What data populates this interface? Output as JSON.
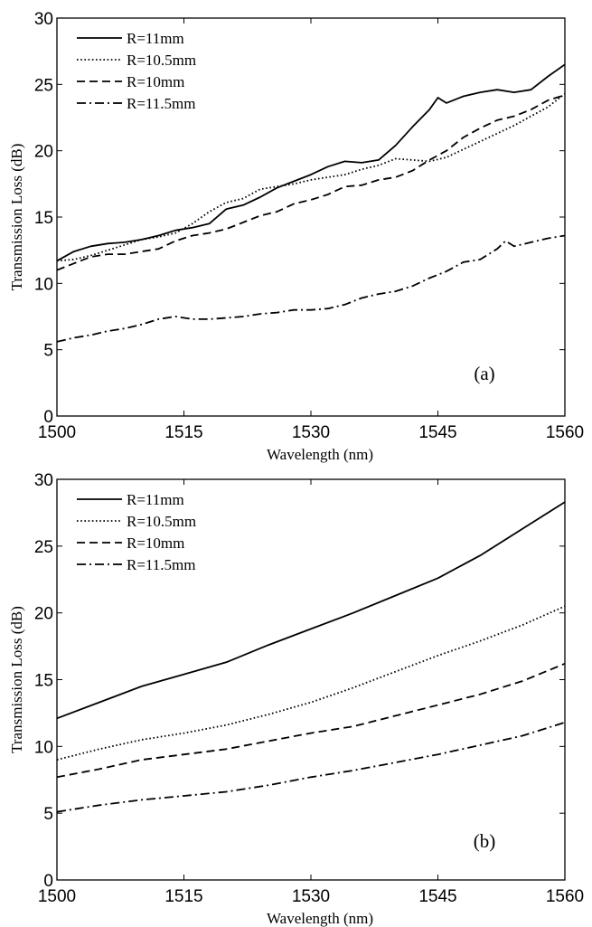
{
  "chart_data": [
    {
      "type": "line",
      "panel_label": "(a)",
      "xlabel": "Wavelength (nm)",
      "ylabel": "Transmission Loss (dB)",
      "xlim": [
        1500,
        1560
      ],
      "ylim": [
        0,
        30
      ],
      "xticks": [
        1500,
        1515,
        1530,
        1545,
        1560
      ],
      "yticks": [
        0,
        5,
        10,
        15,
        20,
        25,
        30
      ],
      "grid": false,
      "legend_position": "top-left",
      "series": [
        {
          "name": "R=11mm",
          "style": "solid",
          "x": [
            1500,
            1502,
            1504,
            1506,
            1508,
            1510,
            1512,
            1514,
            1516,
            1518,
            1520,
            1522,
            1524,
            1526,
            1528,
            1530,
            1532,
            1534,
            1536,
            1538,
            1540,
            1542,
            1544,
            1545,
            1546,
            1548,
            1550,
            1552,
            1554,
            1556,
            1558,
            1560
          ],
          "y": [
            11.7,
            12.4,
            12.8,
            13.0,
            13.1,
            13.3,
            13.6,
            14.0,
            14.2,
            14.5,
            15.6,
            15.9,
            16.5,
            17.2,
            17.7,
            18.2,
            18.8,
            19.2,
            19.1,
            19.3,
            20.4,
            21.8,
            23.1,
            24.0,
            23.6,
            24.1,
            24.4,
            24.6,
            24.4,
            24.6,
            25.6,
            26.5
          ]
        },
        {
          "name": "R=10.5mm",
          "style": "dotted",
          "x": [
            1500,
            1502,
            1504,
            1506,
            1508,
            1510,
            1512,
            1514,
            1516,
            1518,
            1520,
            1522,
            1524,
            1526,
            1528,
            1530,
            1532,
            1534,
            1536,
            1538,
            1540,
            1542,
            1544,
            1546,
            1548,
            1550,
            1552,
            1554,
            1556,
            1558,
            1560
          ],
          "y": [
            11.7,
            11.8,
            12.1,
            12.5,
            12.9,
            13.3,
            13.5,
            13.8,
            14.5,
            15.4,
            16.1,
            16.4,
            17.1,
            17.3,
            17.5,
            17.8,
            18.0,
            18.2,
            18.6,
            18.9,
            19.4,
            19.3,
            19.2,
            19.5,
            20.1,
            20.7,
            21.3,
            21.9,
            22.6,
            23.3,
            24.3
          ]
        },
        {
          "name": "R=10mm",
          "style": "dashed",
          "x": [
            1500,
            1502,
            1504,
            1506,
            1508,
            1510,
            1512,
            1514,
            1516,
            1518,
            1520,
            1522,
            1524,
            1526,
            1528,
            1530,
            1532,
            1534,
            1536,
            1538,
            1540,
            1542,
            1544,
            1546,
            1548,
            1550,
            1552,
            1554,
            1556,
            1558,
            1560
          ],
          "y": [
            11.0,
            11.5,
            12.0,
            12.2,
            12.2,
            12.4,
            12.6,
            13.2,
            13.6,
            13.8,
            14.1,
            14.6,
            15.1,
            15.4,
            16.0,
            16.3,
            16.7,
            17.3,
            17.4,
            17.8,
            18.0,
            18.5,
            19.3,
            20.0,
            21.0,
            21.7,
            22.3,
            22.6,
            23.1,
            23.8,
            24.2
          ]
        },
        {
          "name": "R=11.5mm",
          "style": "dashdot",
          "x": [
            1500,
            1502,
            1504,
            1506,
            1508,
            1510,
            1512,
            1514,
            1516,
            1518,
            1520,
            1522,
            1524,
            1526,
            1528,
            1530,
            1532,
            1534,
            1536,
            1538,
            1540,
            1542,
            1544,
            1546,
            1548,
            1550,
            1552,
            1553,
            1554,
            1556,
            1558,
            1560
          ],
          "y": [
            5.6,
            5.9,
            6.1,
            6.4,
            6.6,
            6.9,
            7.3,
            7.5,
            7.3,
            7.3,
            7.4,
            7.5,
            7.7,
            7.8,
            8.0,
            8.0,
            8.1,
            8.4,
            8.9,
            9.2,
            9.4,
            9.8,
            10.4,
            10.9,
            11.6,
            11.8,
            12.6,
            13.2,
            12.8,
            13.1,
            13.4,
            13.6
          ]
        }
      ]
    },
    {
      "type": "line",
      "panel_label": "(b)",
      "xlabel": "Wavelength (nm)",
      "ylabel": "Transmission Loss (dB)",
      "xlim": [
        1500,
        1560
      ],
      "ylim": [
        0,
        30
      ],
      "xticks": [
        1500,
        1515,
        1530,
        1545,
        1560
      ],
      "yticks": [
        0,
        5,
        10,
        15,
        20,
        25,
        30
      ],
      "grid": false,
      "legend_position": "top-left",
      "series": [
        {
          "name": "R=11mm",
          "style": "solid",
          "x": [
            1500,
            1505,
            1510,
            1515,
            1520,
            1525,
            1530,
            1535,
            1540,
            1545,
            1550,
            1555,
            1560
          ],
          "y": [
            12.1,
            13.3,
            14.5,
            15.4,
            16.3,
            17.6,
            18.8,
            20.0,
            21.3,
            22.6,
            24.3,
            26.3,
            28.3
          ]
        },
        {
          "name": "R=10.5mm",
          "style": "dotted",
          "x": [
            1500,
            1505,
            1510,
            1515,
            1520,
            1525,
            1530,
            1535,
            1540,
            1545,
            1550,
            1555,
            1560
          ],
          "y": [
            9.0,
            9.8,
            10.5,
            11.0,
            11.6,
            12.4,
            13.3,
            14.4,
            15.6,
            16.8,
            17.9,
            19.1,
            20.5
          ]
        },
        {
          "name": "R=10mm",
          "style": "dashed",
          "x": [
            1500,
            1505,
            1510,
            1515,
            1520,
            1525,
            1530,
            1535,
            1540,
            1545,
            1550,
            1555,
            1560
          ],
          "y": [
            7.7,
            8.3,
            9.0,
            9.4,
            9.8,
            10.4,
            11.0,
            11.5,
            12.3,
            13.1,
            13.9,
            14.9,
            16.2
          ]
        },
        {
          "name": "R=11.5mm",
          "style": "dashdot",
          "x": [
            1500,
            1505,
            1510,
            1515,
            1520,
            1525,
            1530,
            1535,
            1540,
            1545,
            1550,
            1555,
            1560
          ],
          "y": [
            5.1,
            5.6,
            6.0,
            6.3,
            6.6,
            7.1,
            7.7,
            8.2,
            8.8,
            9.4,
            10.1,
            10.8,
            11.8
          ]
        }
      ]
    }
  ]
}
